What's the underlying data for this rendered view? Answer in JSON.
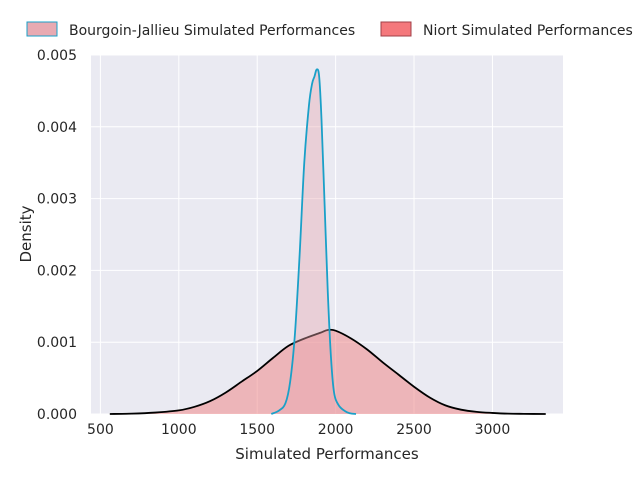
{
  "chart_data": {
    "type": "area",
    "xlabel": "Simulated Performances",
    "ylabel": "Density",
    "xlim": [
      440,
      3450
    ],
    "ylim": [
      0,
      0.005
    ],
    "x_ticks": [
      500,
      1000,
      1500,
      2000,
      2500,
      3000
    ],
    "y_ticks": [
      0,
      0.001,
      0.002,
      0.003,
      0.004,
      0.005
    ],
    "x_tick_labels": [
      "500",
      "1000",
      "1500",
      "2000",
      "2500",
      "3000"
    ],
    "y_tick_labels": [
      "0.000",
      "0.001",
      "0.002",
      "0.003",
      "0.004",
      "0.005"
    ],
    "grid": true,
    "legend_position": "top",
    "background": "#eaeaf2",
    "series": [
      {
        "name": "Niort Simulated Performances",
        "legend_label": "Niort Simulated Performances",
        "fill": "#f08080",
        "fill_opacity": 0.5,
        "line_color": "#000000",
        "legend_fill": "#f4787c",
        "legend_edge": "#a04048",
        "x": [
          560,
          700,
          850,
          1000,
          1100,
          1200,
          1300,
          1400,
          1500,
          1600,
          1700,
          1800,
          1900,
          1950,
          2000,
          2100,
          2200,
          2300,
          2400,
          2500,
          2600,
          2700,
          2800,
          2900,
          3000,
          3100,
          3200,
          3340
        ],
        "y": [
          0,
          5e-06,
          2e-05,
          5e-05,
          0.0001,
          0.00018,
          0.0003,
          0.00045,
          0.0006,
          0.00078,
          0.00095,
          0.00105,
          0.00113,
          0.00117,
          0.00116,
          0.00105,
          0.0009,
          0.00072,
          0.00055,
          0.00038,
          0.00023,
          0.00012,
          6e-05,
          3e-05,
          1.5e-05,
          5e-06,
          2e-06,
          0
        ]
      },
      {
        "name": "Bourgoin-Jallieu Simulated Performances",
        "legend_label": "Bourgoin-Jallieu Simulated Performances",
        "fill": "#e8a8b0",
        "fill_opacity": 0.4,
        "line_color": "#1aa0c8",
        "legend_fill": "#e8aab2",
        "legend_edge": "#1aa0c8",
        "x": [
          1590,
          1640,
          1680,
          1710,
          1740,
          1770,
          1800,
          1830,
          1850,
          1865,
          1880,
          1895,
          1910,
          1930,
          1950,
          1970,
          1990,
          2020,
          2060,
          2090,
          2130
        ],
        "y": [
          0,
          5e-05,
          0.00015,
          0.00045,
          0.0011,
          0.0022,
          0.0035,
          0.0043,
          0.0046,
          0.0047,
          0.0048,
          0.0047,
          0.0041,
          0.0029,
          0.0017,
          0.0008,
          0.0003,
          0.00012,
          4e-05,
          1e-05,
          0
        ]
      }
    ]
  }
}
